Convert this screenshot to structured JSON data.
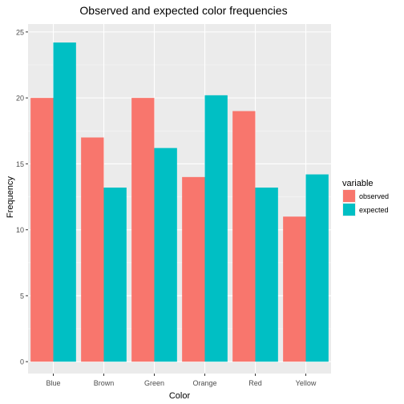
{
  "chart_data": {
    "type": "bar",
    "title": "Observed and expected color frequencies",
    "xlabel": "Color",
    "ylabel": "Frequency",
    "categories": [
      "Blue",
      "Brown",
      "Green",
      "Orange",
      "Red",
      "Yellow"
    ],
    "series": [
      {
        "name": "observed",
        "values": [
          20,
          17,
          20,
          14,
          19,
          11
        ],
        "color": "#F8766D"
      },
      {
        "name": "expected",
        "values": [
          24.2,
          13.2,
          16.2,
          20.2,
          13.2,
          14.2
        ],
        "color": "#00BFC4"
      }
    ],
    "ylim": [
      -0.9,
      25.6
    ],
    "yticks": [
      0,
      5,
      10,
      15,
      20,
      25
    ],
    "grid": true,
    "legend": {
      "title": "variable",
      "position": "right"
    }
  }
}
